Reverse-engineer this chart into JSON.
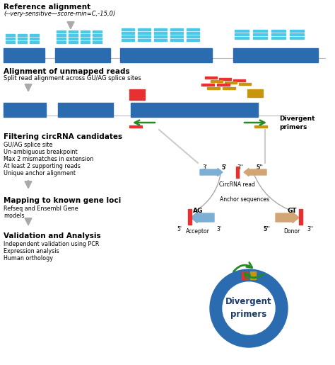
{
  "bg_color": "#ffffff",
  "blue_exon": "#2B6CB0",
  "cyan_read": "#4DC8E8",
  "red_read": "#E83030",
  "gold_read": "#C8960C",
  "green_arrow": "#228B22",
  "gray_arrow": "#AAAAAA",
  "light_blue_arrow": "#7BAFD4",
  "peach_arrow": "#D4A574",
  "section1_title": "Reference alignment",
  "section1_sub": "(--very-sensitive—score-min=C,-15,0)",
  "section2_title": "Alignment of unmapped reads",
  "section2_sub": "Split read alignment across GU/AG splice sites",
  "section3_title": "Filtering circRNA candidates",
  "section3_lines": [
    "GU/AG splice site",
    "Un-ambiguous breakpoint",
    "Max 2 mismatches in extension",
    "At least 2 supporting reads",
    "Unique anchor alignment"
  ],
  "section4_title": "Mapping to known gene loci",
  "section4_lines": [
    "Refseq and Ensembl Gene",
    "models"
  ],
  "section5_title": "Validation and Analysis",
  "section5_lines": [
    "Independent validation using PCR",
    "Expression analysis",
    "Human orthology"
  ],
  "divergent_primers_label": "Divergent\nprimers",
  "circRNA_read_label": "CircRNA read",
  "anchor_sequences_label": "Anchor sequences",
  "acceptor_label": "Acceptor",
  "donor_label": "Donor",
  "ag_label": "AG",
  "gt_label": "GT",
  "divergent_primers_circle_label": "Divergent\nprimers"
}
